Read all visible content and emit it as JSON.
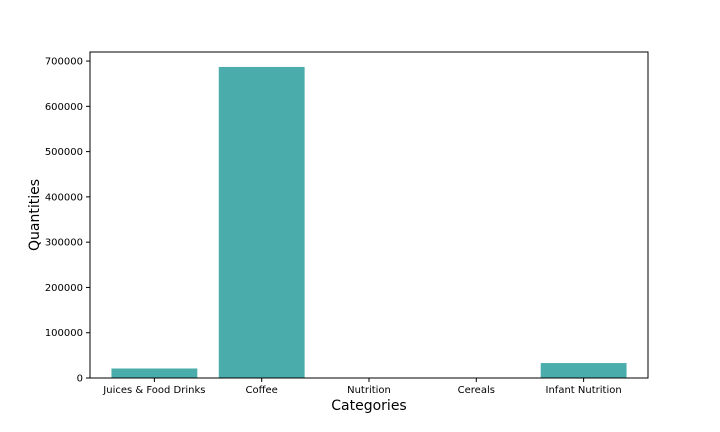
{
  "chart_data": {
    "type": "bar",
    "title": "",
    "xlabel": "Categories",
    "ylabel": "Quantities",
    "categories": [
      "Juices & Food Drinks",
      "Coffee",
      "Nutrition",
      "Cereals",
      "Infant Nutrition"
    ],
    "values": [
      21000,
      687000,
      0,
      0,
      33000
    ],
    "ylim": [
      0,
      720000
    ],
    "yticks": [
      0,
      100000,
      200000,
      300000,
      400000,
      500000,
      600000,
      700000
    ],
    "grid": false,
    "bar_color": "#4aadac"
  }
}
